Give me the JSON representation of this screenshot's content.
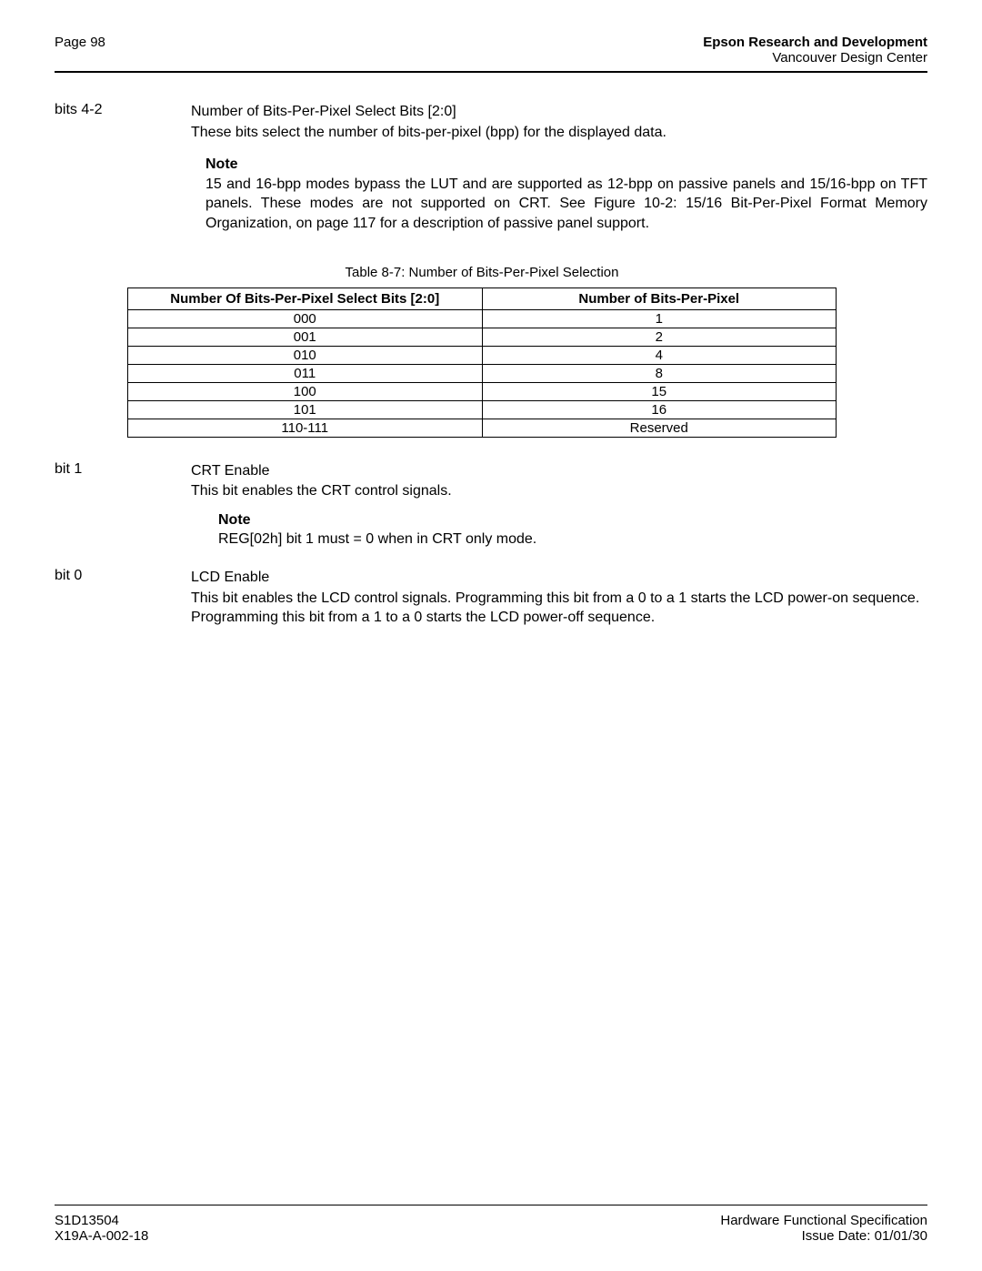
{
  "header": {
    "page_label": "Page 98",
    "company": "Epson Research and Development",
    "center": "Vancouver Design Center"
  },
  "bits42": {
    "label": "bits 4-2",
    "title": "Number of Bits-Per-Pixel Select Bits [2:0]",
    "desc": "These bits select the number of bits-per-pixel (bpp) for the displayed data.",
    "note_label": "Note",
    "note_text": "15 and 16-bpp modes bypass the LUT and are supported as 12-bpp on passive panels and 15/16-bpp on TFT panels. These modes are not supported on CRT. See Figure 10-2:  15/16 Bit-Per-Pixel Format Memory Organization,  on page 117 for a description of passive panel support."
  },
  "table": {
    "caption": "Table 8-7: Number of Bits-Per-Pixel Selection",
    "columns": [
      "Number Of Bits-Per-Pixel Select Bits [2:0]",
      "Number of Bits-Per-Pixel"
    ],
    "rows": [
      [
        "000",
        "1"
      ],
      [
        "001",
        "2"
      ],
      [
        "010",
        "4"
      ],
      [
        "011",
        "8"
      ],
      [
        "100",
        "15"
      ],
      [
        "101",
        "16"
      ],
      [
        "110-111",
        "Reserved"
      ]
    ]
  },
  "bit1": {
    "label": "bit 1",
    "title": "CRT Enable",
    "desc": "This bit enables the CRT control signals.",
    "note_label": "Note",
    "note_text": "REG[02h] bit 1 must = 0 when in CRT only mode."
  },
  "bit0": {
    "label": "bit 0",
    "title": "LCD Enable",
    "desc": "This bit enables the LCD control signals. Programming this bit from a 0 to a 1 starts the LCD power-on sequence. Programming this bit from a 1 to a 0 starts the LCD power-off sequence."
  },
  "footer": {
    "doc_id": "S1D13504",
    "doc_ref": "X19A-A-002-18",
    "spec": "Hardware Functional Specification",
    "date": "Issue Date: 01/01/30"
  }
}
